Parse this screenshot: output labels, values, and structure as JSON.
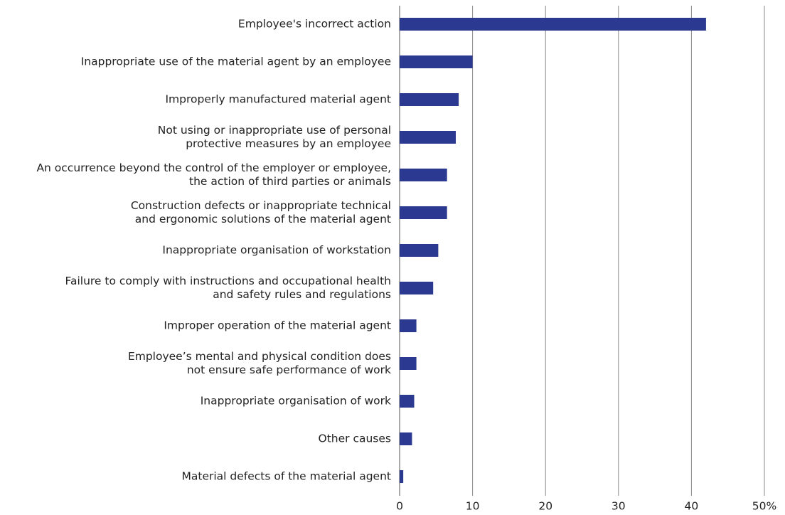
{
  "chart_data": {
    "type": "bar",
    "orientation": "horizontal",
    "categories": [
      [
        "Employee's incorrect action"
      ],
      [
        "Inappropriate use of the material agent by an employee"
      ],
      [
        "Improperly manufactured material agent"
      ],
      [
        "Not using or inappropriate use of personal",
        "protective measures by an employee"
      ],
      [
        "An occurrence beyond the control of the employer or employee,",
        "the action of third parties or animals"
      ],
      [
        "Construction defects or inappropriate technical",
        "and ergonomic solutions of the material agent"
      ],
      [
        "Inappropriate organisation of workstation"
      ],
      [
        "Failure to comply with instructions and occupational health",
        "and safety rules and regulations"
      ],
      [
        "Improper operation of the material agent"
      ],
      [
        "Employee’s mental and physical condition does",
        "not ensure safe performance of work"
      ],
      [
        "Inappropriate organisation of work"
      ],
      [
        "Other causes"
      ],
      [
        "Material defects of the material agent"
      ]
    ],
    "values": [
      42,
      10,
      8.1,
      7.7,
      6.5,
      6.5,
      5.3,
      4.6,
      2.3,
      2.3,
      2.0,
      1.7,
      0.5
    ],
    "color": "#2b3990",
    "xlim": [
      0,
      50
    ],
    "xticks": [
      0,
      10,
      20,
      30,
      40,
      {
        "value": 50,
        "label": "50%"
      }
    ],
    "grid": true
  }
}
